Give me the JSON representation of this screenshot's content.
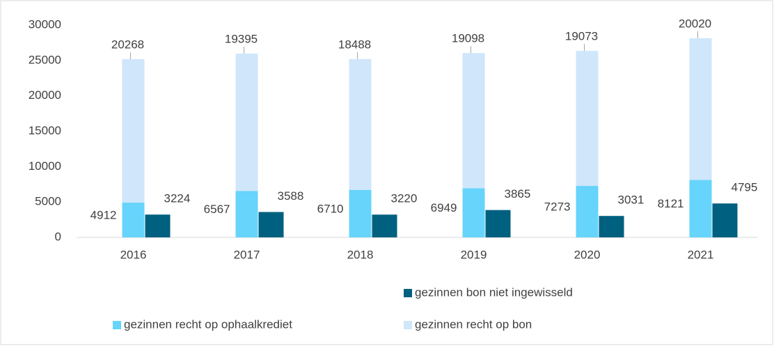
{
  "chart_data": {
    "type": "bar",
    "categories": [
      "2016",
      "2017",
      "2018",
      "2019",
      "2020",
      "2021"
    ],
    "series": [
      {
        "name": "gezinnen recht op ophaalkrediet",
        "color": "#66d4fb",
        "values": [
          4912,
          6567,
          6710,
          6949,
          7273,
          8121
        ]
      },
      {
        "name": "gezinnen recht op bon",
        "color": "#cfe6fb",
        "values": [
          20268,
          19395,
          18488,
          19098,
          19073,
          20020
        ]
      },
      {
        "name": "gezinnen bon niet ingewisseld",
        "color": "#00607f",
        "values": [
          3224,
          3588,
          3220,
          3865,
          3031,
          4795
        ]
      }
    ],
    "ylim": [
      0,
      30000
    ],
    "yticks": [
      0,
      5000,
      10000,
      15000,
      20000,
      25000,
      30000
    ],
    "grid": false,
    "legend": "bottom"
  }
}
